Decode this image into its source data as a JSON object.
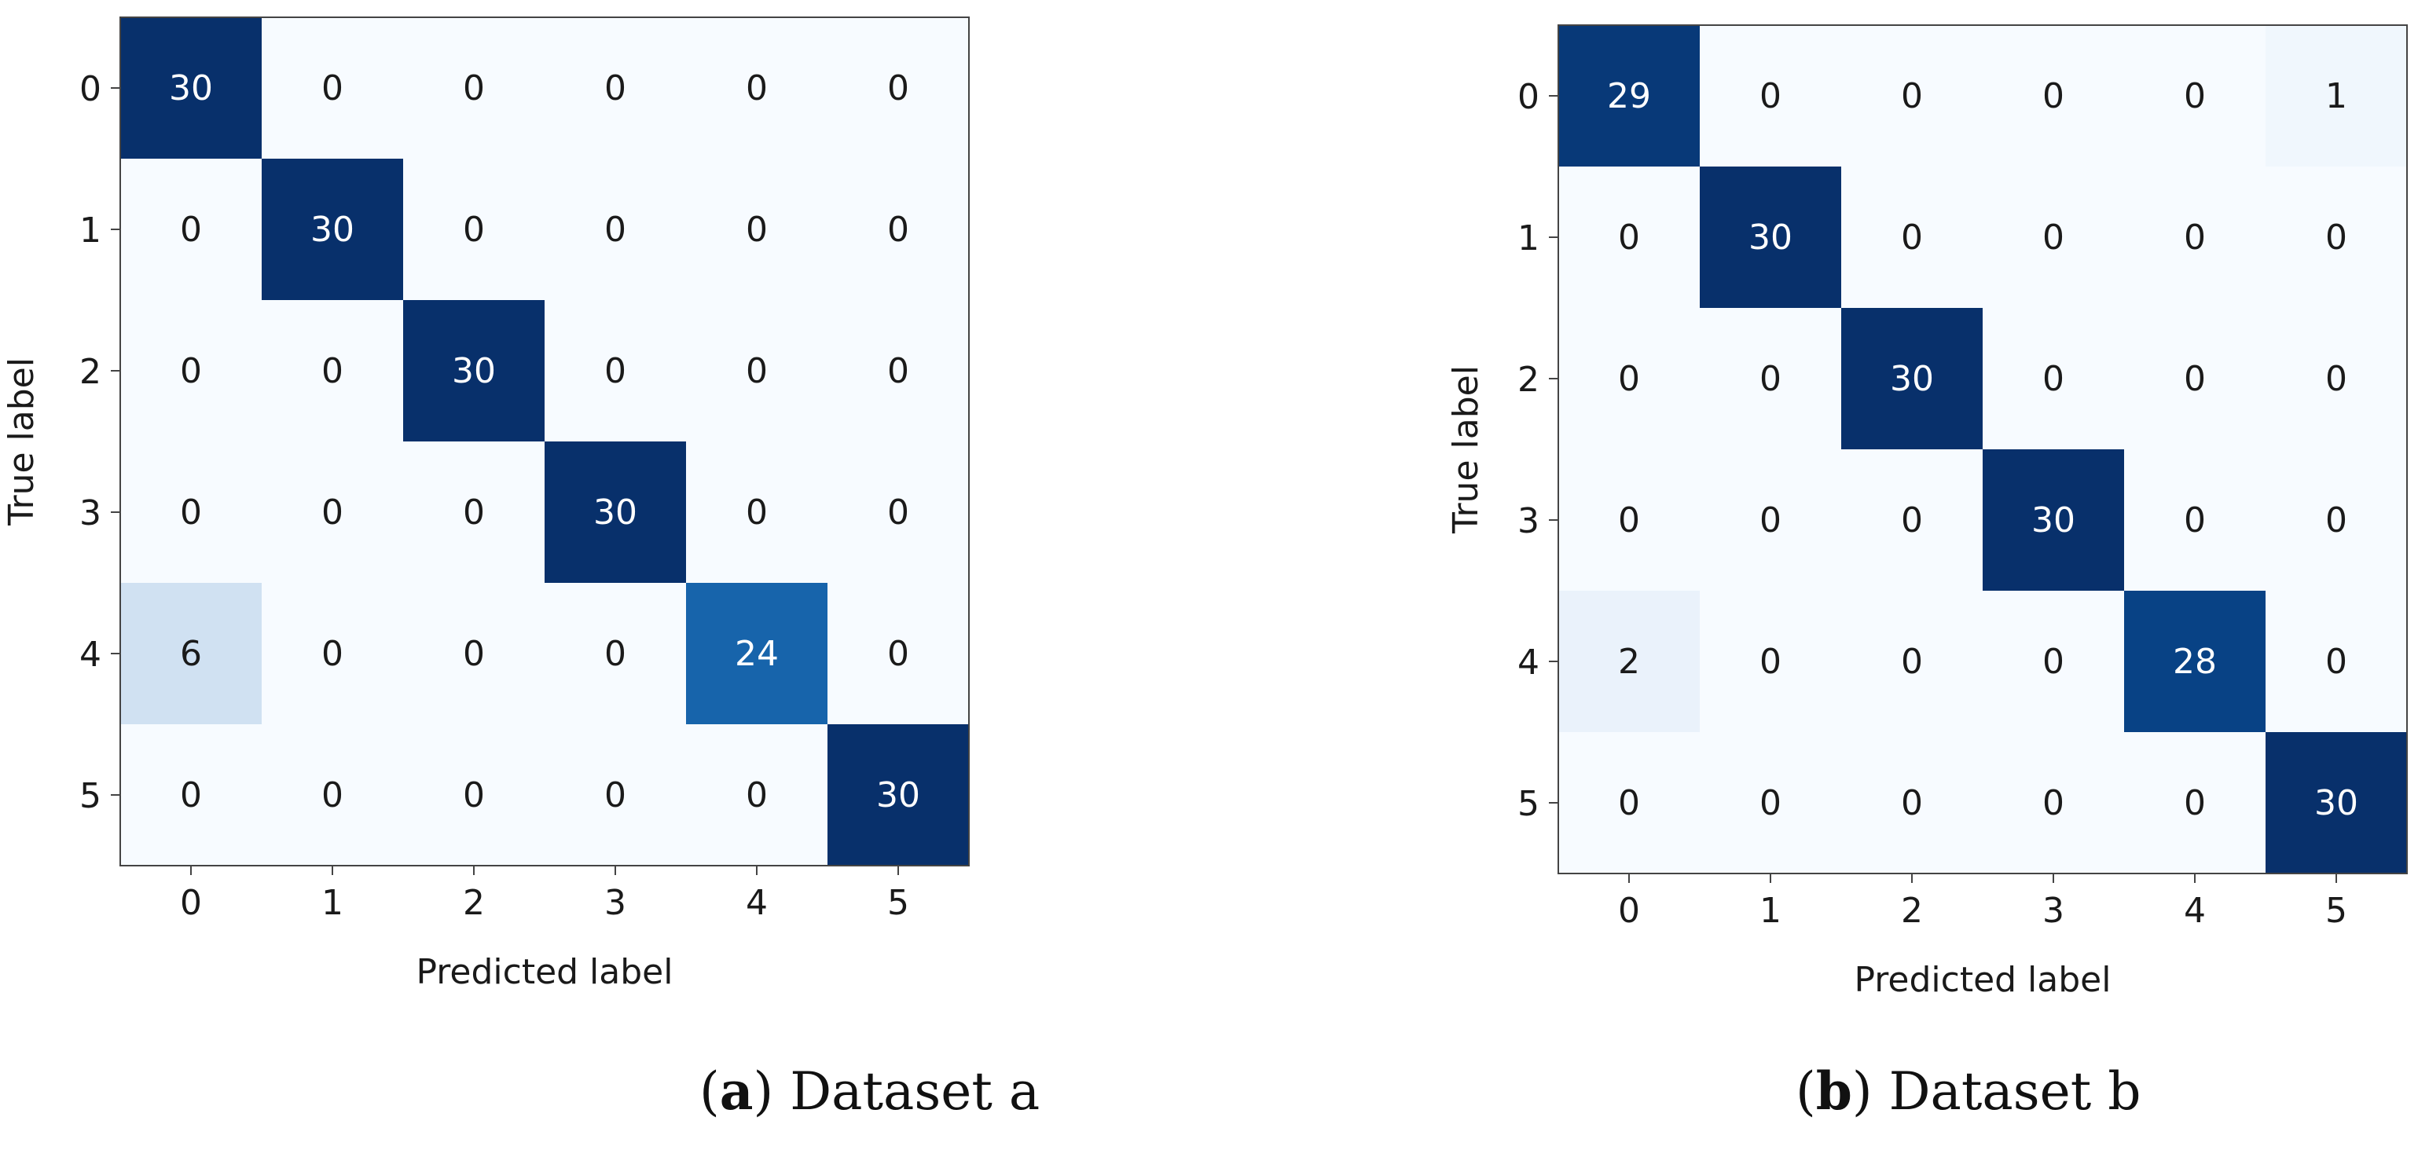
{
  "chart_data": [
    {
      "type": "heatmap",
      "xlabel": "Predicted label",
      "ylabel": "True label",
      "x_ticks": [
        "0",
        "1",
        "2",
        "3",
        "4",
        "5"
      ],
      "y_ticks": [
        "0",
        "1",
        "2",
        "3",
        "4",
        "5"
      ],
      "matrix": [
        [
          30,
          0,
          0,
          0,
          0,
          0
        ],
        [
          0,
          30,
          0,
          0,
          0,
          0
        ],
        [
          0,
          0,
          30,
          0,
          0,
          0
        ],
        [
          0,
          0,
          0,
          30,
          0,
          0
        ],
        [
          6,
          0,
          0,
          0,
          24,
          0
        ],
        [
          0,
          0,
          0,
          0,
          0,
          30
        ]
      ],
      "vmin": 0,
      "vmax": 30,
      "colormap": "Blues",
      "caption": {
        "letter": "a",
        "open": "(",
        "close": ") ",
        "text": "Dataset a"
      }
    },
    {
      "type": "heatmap",
      "xlabel": "Predicted label",
      "ylabel": "True label",
      "x_ticks": [
        "0",
        "1",
        "2",
        "3",
        "4",
        "5"
      ],
      "y_ticks": [
        "0",
        "1",
        "2",
        "3",
        "4",
        "5"
      ],
      "matrix": [
        [
          29,
          0,
          0,
          0,
          0,
          1
        ],
        [
          0,
          30,
          0,
          0,
          0,
          0
        ],
        [
          0,
          0,
          30,
          0,
          0,
          0
        ],
        [
          0,
          0,
          0,
          30,
          0,
          0
        ],
        [
          2,
          0,
          0,
          0,
          28,
          0
        ],
        [
          0,
          0,
          0,
          0,
          0,
          30
        ]
      ],
      "vmin": 0,
      "vmax": 30,
      "colormap": "Blues",
      "caption": {
        "letter": "b",
        "open": "(",
        "close": ") ",
        "text": "Dataset b"
      }
    }
  ]
}
